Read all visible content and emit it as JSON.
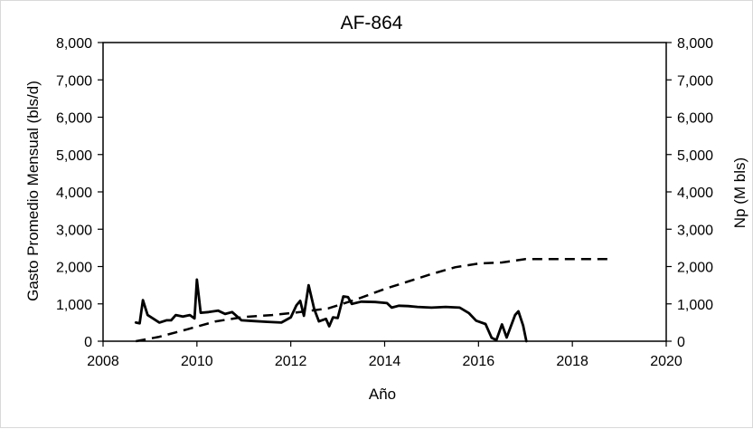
{
  "chart_data": {
    "type": "line",
    "title": "AF-864",
    "xlabel": "Año",
    "ylabel": "Gasto Promedio Mensual (bls/d)",
    "y2label": "Np (M bls)",
    "xlim": [
      2008,
      2020
    ],
    "ylim": [
      0,
      8000
    ],
    "y2lim": [
      0,
      8000
    ],
    "x_ticks": [
      "2008",
      "2010",
      "2012",
      "2014",
      "2016",
      "2018",
      "2020"
    ],
    "y_ticks": [
      "0",
      "1,000",
      "2,000",
      "3,000",
      "4,000",
      "5,000",
      "6,000",
      "7,000",
      "8,000"
    ],
    "y2_ticks": [
      "0",
      "1,000",
      "2,000",
      "3,000",
      "4,000",
      "5,000",
      "6,000",
      "7,000",
      "8,000"
    ],
    "grid": false,
    "legend": "none",
    "series": [
      {
        "axis": "left",
        "style": "solid",
        "color": "#000000",
        "points": [
          [
            2008.7,
            500
          ],
          [
            2008.78,
            480
          ],
          [
            2008.85,
            1100
          ],
          [
            2008.95,
            700
          ],
          [
            2009.1,
            580
          ],
          [
            2009.2,
            500
          ],
          [
            2009.35,
            560
          ],
          [
            2009.45,
            560
          ],
          [
            2009.55,
            700
          ],
          [
            2009.7,
            660
          ],
          [
            2009.85,
            700
          ],
          [
            2009.95,
            610
          ],
          [
            2010.0,
            1650
          ],
          [
            2010.08,
            760
          ],
          [
            2010.25,
            780
          ],
          [
            2010.45,
            820
          ],
          [
            2010.6,
            730
          ],
          [
            2010.75,
            780
          ],
          [
            2010.95,
            560
          ],
          [
            2011.2,
            540
          ],
          [
            2011.5,
            520
          ],
          [
            2011.8,
            500
          ],
          [
            2012.0,
            640
          ],
          [
            2012.12,
            960
          ],
          [
            2012.2,
            1080
          ],
          [
            2012.28,
            680
          ],
          [
            2012.38,
            1500
          ],
          [
            2012.5,
            860
          ],
          [
            2012.6,
            530
          ],
          [
            2012.75,
            600
          ],
          [
            2012.82,
            400
          ],
          [
            2012.9,
            640
          ],
          [
            2013.0,
            620
          ],
          [
            2013.12,
            1200
          ],
          [
            2013.22,
            1180
          ],
          [
            2013.3,
            1000
          ],
          [
            2013.5,
            1060
          ],
          [
            2013.8,
            1050
          ],
          [
            2014.05,
            1020
          ],
          [
            2014.15,
            900
          ],
          [
            2014.3,
            950
          ],
          [
            2014.5,
            940
          ],
          [
            2014.7,
            920
          ],
          [
            2015.0,
            900
          ],
          [
            2015.3,
            920
          ],
          [
            2015.6,
            900
          ],
          [
            2015.8,
            750
          ],
          [
            2015.95,
            550
          ],
          [
            2016.15,
            460
          ],
          [
            2016.28,
            90
          ],
          [
            2016.38,
            30
          ],
          [
            2016.5,
            450
          ],
          [
            2016.6,
            100
          ],
          [
            2016.78,
            700
          ],
          [
            2016.85,
            800
          ],
          [
            2016.95,
            420
          ],
          [
            2017.02,
            0
          ]
        ]
      },
      {
        "axis": "right",
        "style": "dashed",
        "color": "#000000",
        "points": [
          [
            2008.7,
            0
          ],
          [
            2009.2,
            120
          ],
          [
            2009.8,
            320
          ],
          [
            2010.4,
            530
          ],
          [
            2011.0,
            650
          ],
          [
            2011.6,
            700
          ],
          [
            2012.2,
            780
          ],
          [
            2012.8,
            880
          ],
          [
            2013.4,
            1120
          ],
          [
            2014.0,
            1400
          ],
          [
            2014.5,
            1600
          ],
          [
            2015.0,
            1800
          ],
          [
            2015.5,
            1980
          ],
          [
            2016.0,
            2080
          ],
          [
            2016.5,
            2110
          ],
          [
            2017.0,
            2200
          ],
          [
            2018.0,
            2200
          ],
          [
            2018.8,
            2200
          ]
        ]
      }
    ]
  }
}
